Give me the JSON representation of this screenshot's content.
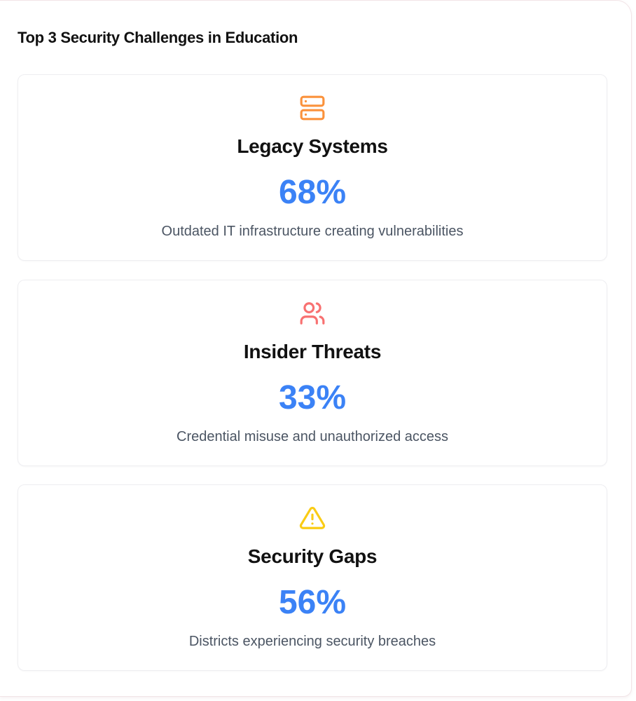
{
  "panel": {
    "title": "Top 3 Security Challenges in Education"
  },
  "cards": [
    {
      "icon": "server-icon",
      "icon_color": "#fb923c",
      "title": "Legacy Systems",
      "value": "68%",
      "description": "Outdated IT infrastructure creating vulnerabilities"
    },
    {
      "icon": "users-icon",
      "icon_color": "#f87171",
      "title": "Insider Threats",
      "value": "33%",
      "description": "Credential misuse and unauthorized access"
    },
    {
      "icon": "alert-triangle-icon",
      "icon_color": "#facc15",
      "title": "Security Gaps",
      "value": "56%",
      "description": "Districts experiencing security breaches"
    }
  ],
  "colors": {
    "value_accent": "#3b82f6",
    "title_text": "#111111",
    "description_text": "#4b5563"
  }
}
